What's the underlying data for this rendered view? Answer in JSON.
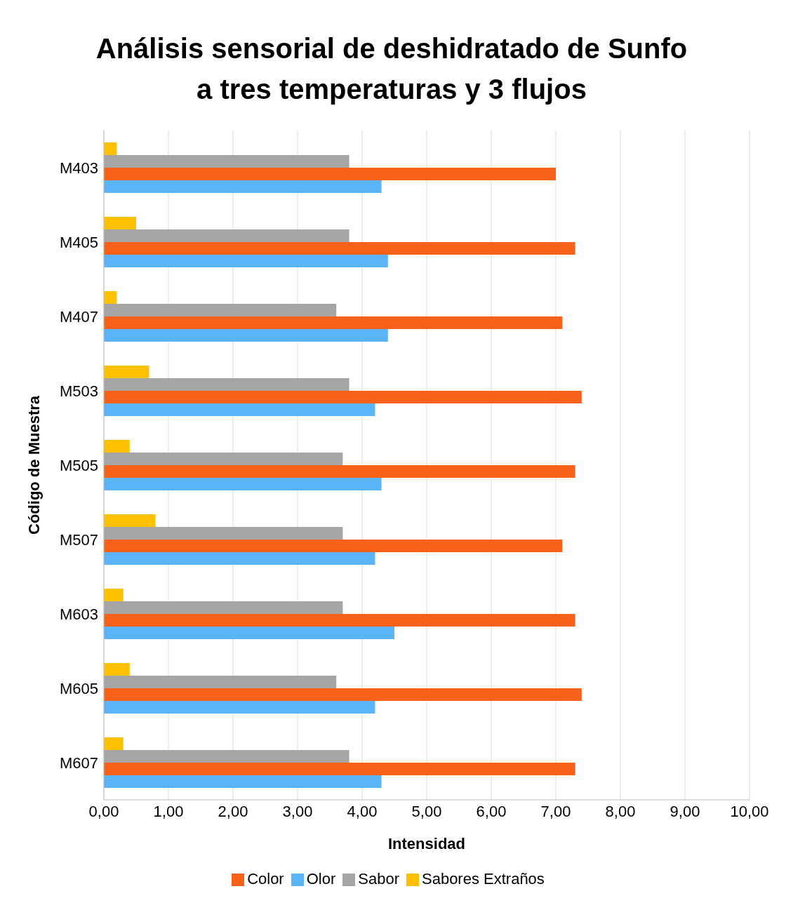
{
  "chart_data": {
    "type": "bar",
    "orientation": "horizontal",
    "title": "Análisis sensorial de deshidratado de Sunfo\na tres temperaturas y 3 flujos",
    "xlabel": "Intensidad",
    "ylabel": "Código de Muestra",
    "categories": [
      "M403",
      "M405",
      "M407",
      "M503",
      "M505",
      "M507",
      "M603",
      "M605",
      "M607"
    ],
    "series": [
      {
        "name": "Sabores Extraños",
        "color": "#ffc000",
        "values": [
          0.2,
          0.5,
          0.2,
          0.7,
          0.4,
          0.8,
          0.3,
          0.4,
          0.3
        ]
      },
      {
        "name": "Sabor",
        "color": "#a5a5a5",
        "values": [
          3.8,
          3.8,
          3.6,
          3.8,
          3.7,
          3.7,
          3.7,
          3.6,
          3.8
        ]
      },
      {
        "name": "Color",
        "color": "#f86119",
        "values": [
          7.0,
          7.3,
          7.1,
          7.4,
          7.3,
          7.1,
          7.3,
          7.4,
          7.3
        ]
      },
      {
        "name": "Olor",
        "color": "#5bb4f7",
        "values": [
          4.3,
          4.4,
          4.4,
          4.2,
          4.3,
          4.2,
          4.5,
          4.2,
          4.3
        ]
      }
    ],
    "xlim": [
      0,
      10
    ],
    "xticks": [
      {
        "value": 0,
        "label": "0,00"
      },
      {
        "value": 1,
        "label": "1,00"
      },
      {
        "value": 2,
        "label": "2,00"
      },
      {
        "value": 3,
        "label": "3,00"
      },
      {
        "value": 4,
        "label": "4,00"
      },
      {
        "value": 5,
        "label": "5,00"
      },
      {
        "value": 6,
        "label": "6,00"
      },
      {
        "value": 7,
        "label": "7,00"
      },
      {
        "value": 8,
        "label": "8,00"
      },
      {
        "value": 9,
        "label": "9,00"
      },
      {
        "value": 10,
        "label": "10,00"
      }
    ],
    "grid": "x",
    "legend": "bottom"
  }
}
